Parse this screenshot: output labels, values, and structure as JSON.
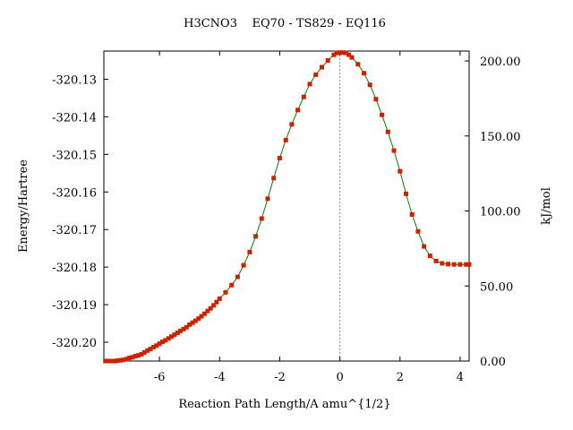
{
  "chart_data": {
    "type": "line",
    "title": "H3CNO3    EQ70 - TS829 - EQ116",
    "xlabel": "Reaction Path Length/A amu^{1/2}",
    "ylabel_left": "Energy/Hartree",
    "ylabel_right": "kJ/mol",
    "xlim": [
      -7.85,
      4.3
    ],
    "ylim_left": [
      -320.205,
      -320.1225
    ],
    "ylim_right": [
      0,
      206.6
    ],
    "x_ticks": [
      -6,
      -4,
      -2,
      0,
      2,
      4
    ],
    "y_left_ticks": [
      -320.13,
      -320.14,
      -320.15,
      -320.16,
      -320.17,
      -320.18,
      -320.19,
      -320.2
    ],
    "y_left_tick_labels": [
      "-320.13",
      "-320.14",
      "-320.15",
      "-320.16",
      "-320.17",
      "-320.18",
      "-320.19",
      "-320.20"
    ],
    "y_right_ticks": [
      0,
      50,
      100,
      150,
      200
    ],
    "y_right_tick_labels": [
      "0.00",
      "50.00",
      "100.00",
      "150.00",
      "200.00"
    ],
    "ts_x": 0,
    "grid": false,
    "line_color": "#008000",
    "marker_color": "#cc2200",
    "series": [
      {
        "x": [
          -7.8,
          -7.7,
          -7.6,
          -7.5,
          -7.4,
          -7.3,
          -7.2,
          -7.1,
          -7.0,
          -6.9,
          -6.8,
          -6.7,
          -6.6,
          -6.5,
          -6.4,
          -6.3,
          -6.2,
          -6.1,
          -6.0,
          -5.9,
          -5.8,
          -5.7,
          -5.6,
          -5.5,
          -5.4,
          -5.3,
          -5.2,
          -5.1,
          -5.0,
          -4.9,
          -4.8,
          -4.7,
          -4.6,
          -4.5,
          -4.4,
          -4.3,
          -4.2,
          -4.1,
          -4.0,
          -3.8,
          -3.6,
          -3.4,
          -3.2,
          -3.0,
          -2.8,
          -2.6,
          -2.4,
          -2.2,
          -2.0,
          -1.8,
          -1.6,
          -1.4,
          -1.2,
          -1.0,
          -0.8,
          -0.6,
          -0.4,
          -0.2,
          -0.1,
          0.0,
          0.1,
          0.2,
          0.3,
          0.4,
          0.6,
          0.8,
          1.0,
          1.2,
          1.4,
          1.6,
          1.8,
          2.0,
          2.2,
          2.4,
          2.6,
          2.8,
          3.0,
          3.2,
          3.4,
          3.6,
          3.8,
          4.0,
          4.2,
          4.3
        ],
        "y": [
          -320.205,
          -320.205,
          -320.205,
          -320.205,
          -320.2049,
          -320.2048,
          -320.2047,
          -320.2045,
          -320.2042,
          -320.204,
          -320.2037,
          -320.2035,
          -320.2032,
          -320.2027,
          -320.2022,
          -320.2018,
          -320.2013,
          -320.2009,
          -320.2004,
          -320.1999,
          -320.1995,
          -320.199,
          -320.1985,
          -320.198,
          -320.1975,
          -320.197,
          -320.1965,
          -320.196,
          -320.1953,
          -320.1948,
          -320.1943,
          -320.1937,
          -320.1931,
          -320.1924,
          -320.1917,
          -320.191,
          -320.1902,
          -320.1893,
          -320.1884,
          -320.1867,
          -320.1848,
          -320.1826,
          -320.1795,
          -320.176,
          -320.1718,
          -320.1671,
          -320.1618,
          -320.1563,
          -320.151,
          -320.1462,
          -320.142,
          -320.1382,
          -320.1347,
          -320.1313,
          -320.1288,
          -320.1268,
          -320.125,
          -320.1235,
          -320.123,
          -320.1229,
          -320.1229,
          -320.123,
          -320.1235,
          -320.1242,
          -320.126,
          -320.1284,
          -320.1315,
          -320.1353,
          -320.1395,
          -320.144,
          -320.149,
          -320.1545,
          -320.1605,
          -320.166,
          -320.1705,
          -320.1745,
          -320.177,
          -320.1784,
          -320.179,
          -320.1792,
          -320.1793,
          -320.1793,
          -320.1793,
          -320.1793
        ]
      }
    ]
  }
}
